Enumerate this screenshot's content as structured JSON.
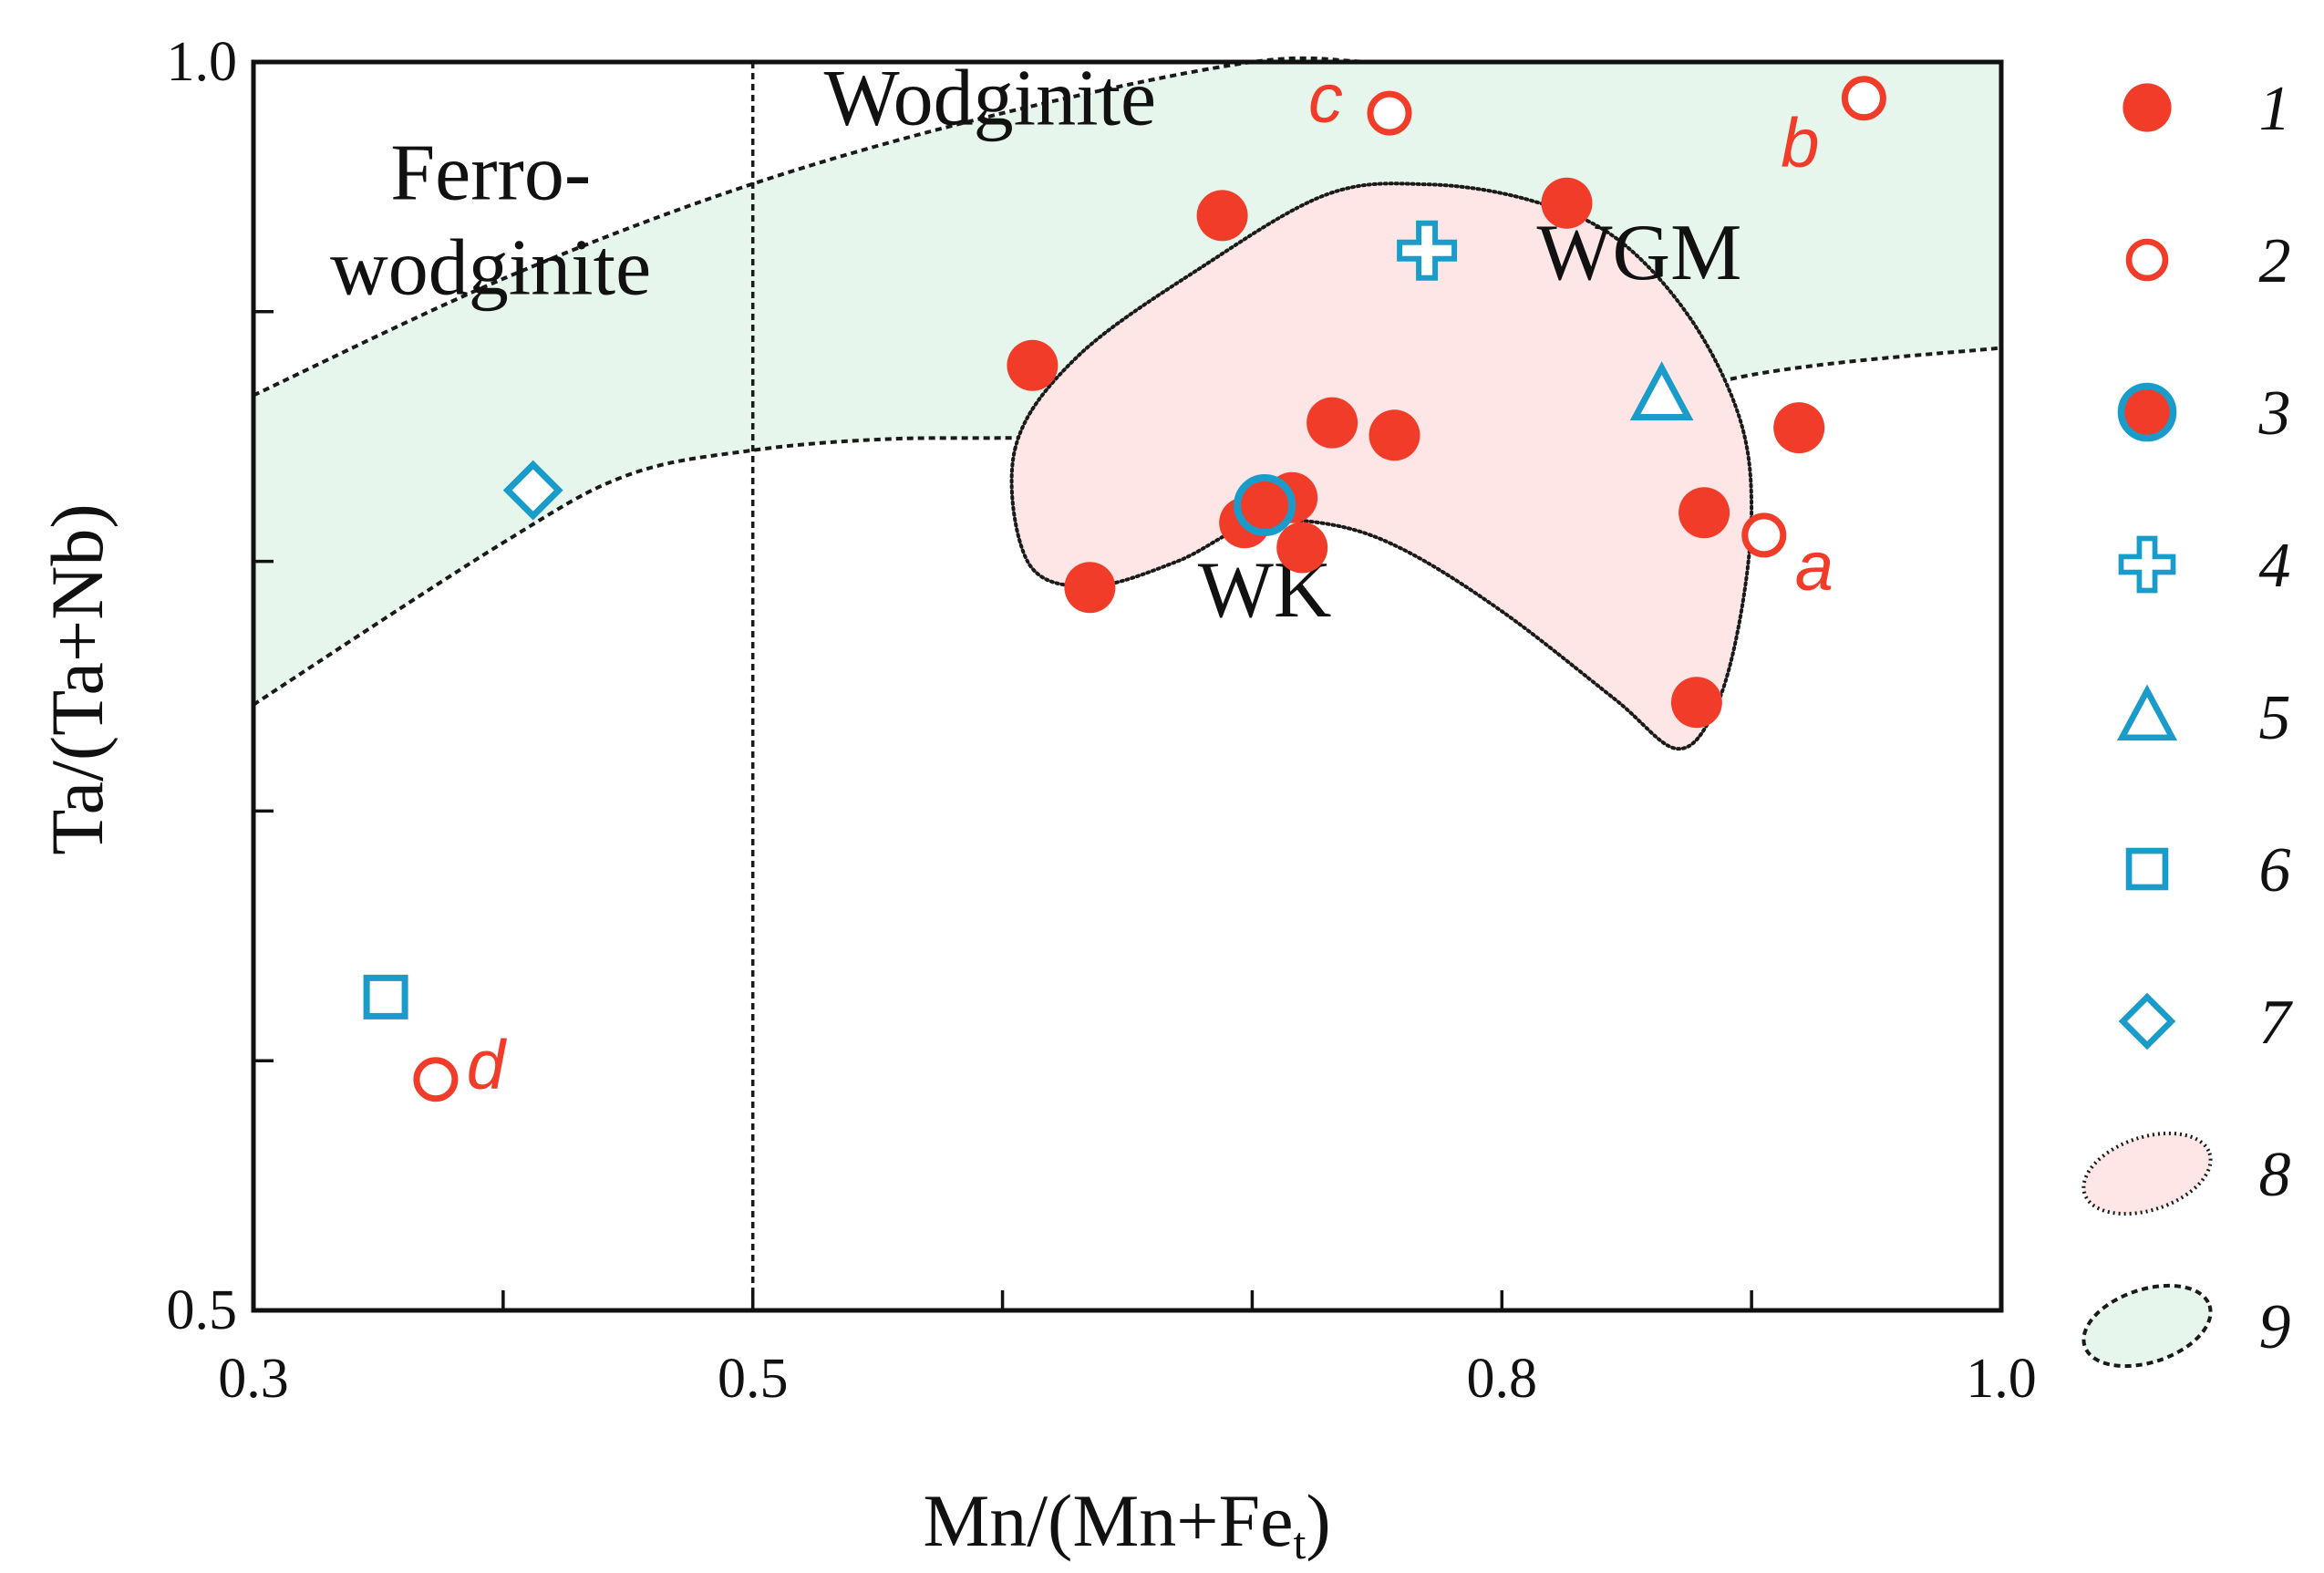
{
  "chart_data": {
    "type": "scatter",
    "xlabel": "Mn/(Mn+Fe",
    "xlabel_sub": "t",
    "xlabel_tail": ")",
    "ylabel": "Ta/(Ta+Nb)",
    "xlim": [
      0.3,
      1.0
    ],
    "ylim": [
      0.5,
      1.0
    ],
    "x_ticks": [
      0.3,
      0.4,
      0.5,
      0.6,
      0.7,
      0.8,
      0.9,
      1.0
    ],
    "x_tick_labels": [
      "0.3",
      "",
      "0.5",
      "",
      "",
      "0.8",
      "",
      "1.0"
    ],
    "y_ticks": [
      0.5,
      0.6,
      0.7,
      0.8,
      0.9,
      1.0
    ],
    "y_tick_labels": [
      "0.5",
      "",
      "",
      "",
      "",
      "1.0"
    ],
    "divider_x": 0.5,
    "region_labels": [
      {
        "lines": [
          "Ferro-",
          "wodginite"
        ],
        "x": 0.395,
        "y": 0.945
      },
      {
        "lines": [
          "Wodginite"
        ],
        "x": 0.595,
        "y": 0.975
      },
      {
        "lines": [
          "WGM"
        ],
        "x": 0.855,
        "y": 0.913
      },
      {
        "lines": [
          "WK"
        ],
        "x": 0.705,
        "y": 0.778
      }
    ],
    "fields": [
      {
        "name": "WGM",
        "legend_num": "9",
        "fill": "#e6f6ec",
        "stroke": "#1a1a1a",
        "dash": "7,5",
        "upper": [
          [
            0.3,
            0.8665
          ],
          [
            0.4,
            0.9132
          ],
          [
            0.5,
            0.9512
          ],
          [
            0.6,
            0.9795
          ],
          [
            0.7,
            1.0145
          ],
          [
            0.75,
            1.0325
          ],
          [
            0.8,
            1.0374
          ],
          [
            0.85,
            1.0338
          ],
          [
            0.9,
            1.0247
          ],
          [
            1.0,
            1.0219
          ]
        ],
        "lower": [
          [
            0.3,
            0.7426
          ],
          [
            0.4,
            0.8075
          ],
          [
            0.45,
            0.8346
          ],
          [
            0.5,
            0.8445
          ],
          [
            0.55,
            0.8488
          ],
          [
            0.6,
            0.8494
          ],
          [
            0.7,
            0.8494
          ],
          [
            0.8,
            0.8494
          ],
          [
            0.9,
            0.8747
          ],
          [
            1.0,
            0.8855
          ]
        ]
      },
      {
        "name": "WK",
        "legend_num": "8",
        "fill": "#fde6e5",
        "stroke": "#1a1a1a",
        "dash": "2,4",
        "outline": [
          [
            0.605,
            0.845
          ],
          [
            0.63,
            0.882
          ],
          [
            0.68,
            0.918
          ],
          [
            0.73,
            0.947
          ],
          [
            0.77,
            0.951
          ],
          [
            0.81,
            0.945
          ],
          [
            0.845,
            0.93
          ],
          [
            0.875,
            0.898
          ],
          [
            0.895,
            0.858
          ],
          [
            0.9,
            0.82
          ],
          [
            0.895,
            0.775
          ],
          [
            0.885,
            0.74
          ],
          [
            0.87,
            0.725
          ],
          [
            0.845,
            0.745
          ],
          [
            0.8,
            0.78
          ],
          [
            0.76,
            0.805
          ],
          [
            0.73,
            0.815
          ],
          [
            0.7,
            0.815
          ],
          [
            0.67,
            0.8
          ],
          [
            0.635,
            0.79
          ],
          [
            0.61,
            0.8
          ]
        ]
      }
    ],
    "series": [
      {
        "name": "1",
        "marker": "filled-circle",
        "color": "#f23c2a",
        "points": [
          [
            0.612,
            0.8785
          ],
          [
            0.688,
            0.9385
          ],
          [
            0.635,
            0.7895
          ],
          [
            0.732,
            0.8555
          ],
          [
            0.697,
            0.8155
          ],
          [
            0.72,
            0.8055
          ],
          [
            0.716,
            0.8255
          ],
          [
            0.826,
            0.9435
          ],
          [
            0.881,
            0.8195
          ],
          [
            0.919,
            0.8535
          ],
          [
            0.878,
            0.7435
          ],
          [
            0.757,
            0.8505
          ]
        ]
      },
      {
        "name": "2",
        "marker": "open-circle",
        "color": "#f23c2a",
        "points": [
          [
            0.755,
            0.9795
          ],
          [
            0.945,
            0.9855
          ],
          [
            0.905,
            0.8105
          ],
          [
            0.373,
            0.5925
          ]
        ],
        "labels": [
          "c",
          "b",
          "a",
          "d"
        ]
      },
      {
        "name": "3",
        "marker": "ringed-circle",
        "color": "#f23c2a",
        "ring": "#199cc9",
        "points": [
          [
            0.705,
            0.8225
          ]
        ]
      },
      {
        "name": "4",
        "marker": "cross",
        "color": "#199cc9",
        "points": [
          [
            0.77,
            0.9245
          ]
        ]
      },
      {
        "name": "5",
        "marker": "triangle",
        "color": "#199cc9",
        "points": [
          [
            0.864,
            0.8665
          ]
        ]
      },
      {
        "name": "6",
        "marker": "square",
        "color": "#199cc9",
        "points": [
          [
            0.353,
            0.6255
          ]
        ]
      },
      {
        "name": "7",
        "marker": "diamond",
        "color": "#199cc9",
        "points": [
          [
            0.412,
            0.8285
          ]
        ]
      }
    ],
    "legend": {
      "placement": "right",
      "entries": [
        {
          "num": "1",
          "marker": "filled-circle"
        },
        {
          "num": "2",
          "marker": "open-circle"
        },
        {
          "num": "3",
          "marker": "ringed-circle"
        },
        {
          "num": "4",
          "marker": "cross"
        },
        {
          "num": "5",
          "marker": "triangle"
        },
        {
          "num": "6",
          "marker": "square"
        },
        {
          "num": "7",
          "marker": "diamond"
        },
        {
          "num": "8",
          "marker": "field-WK"
        },
        {
          "num": "9",
          "marker": "field-WGM"
        }
      ]
    },
    "grid": false
  }
}
